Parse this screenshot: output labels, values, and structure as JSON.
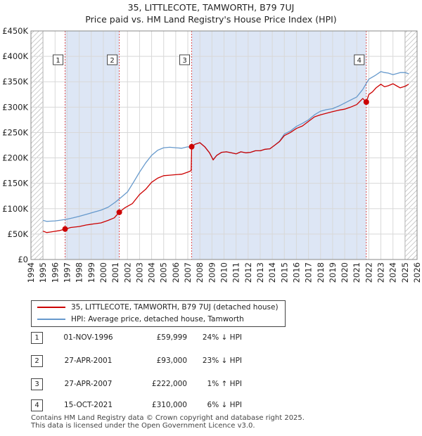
{
  "title": {
    "line1": "35, LITTLECOTE, TAMWORTH, B79 7UJ",
    "line2": "Price paid vs. HM Land Registry's House Price Index (HPI)"
  },
  "colors": {
    "price_paid": "#cc0000",
    "hpi": "#6699cc",
    "shade": "#dde6f5",
    "hatch": "#aaaaaa"
  },
  "legend": {
    "price_paid": "35, LITTLECOTE, TAMWORTH, B79 7UJ (detached house)",
    "hpi": "HPI: Average price, detached house, Tamworth"
  },
  "table": [
    {
      "num": "1",
      "date": "01-NOV-1996",
      "price": "£59,999",
      "pct": "24% ↓ HPI"
    },
    {
      "num": "2",
      "date": "27-APR-2001",
      "price": "£93,000",
      "pct": "23% ↓ HPI"
    },
    {
      "num": "3",
      "date": "27-APR-2007",
      "price": "£222,000",
      "pct": "1% ↑ HPI"
    },
    {
      "num": "4",
      "date": "15-OCT-2021",
      "price": "£310,000",
      "pct": "6% ↓ HPI"
    }
  ],
  "footer": {
    "line1": "Contains HM Land Registry data © Crown copyright and database right 2025.",
    "line2": "This data is licensed under the Open Government Licence v3.0."
  },
  "chart_data": {
    "type": "line",
    "xlim": [
      1994,
      2026
    ],
    "ylim": [
      0,
      450000
    ],
    "ytick_values": [
      0,
      50000,
      100000,
      150000,
      200000,
      250000,
      300000,
      350000,
      400000,
      450000
    ],
    "ytick_labels": [
      "£0",
      "£50K",
      "£100K",
      "£150K",
      "£200K",
      "£250K",
      "£300K",
      "£350K",
      "£400K",
      "£450K"
    ],
    "xtick_labels": [
      "1994",
      "1995",
      "1996",
      "1997",
      "1998",
      "1999",
      "2000",
      "2001",
      "2002",
      "2003",
      "2004",
      "2005",
      "2006",
      "2007",
      "2008",
      "2009",
      "2010",
      "2011",
      "2012",
      "2013",
      "2014",
      "2015",
      "2016",
      "2017",
      "2018",
      "2019",
      "2020",
      "2021",
      "2022",
      "2023",
      "2024",
      "2025",
      "2026"
    ],
    "data_start": 1995.0,
    "hatch_start": 2025.0,
    "shaded_periods": [
      [
        1996.83,
        2001.32
      ],
      [
        2007.32,
        2021.79
      ]
    ],
    "sales": [
      {
        "label": "1",
        "x": 1996.83,
        "y": 59999
      },
      {
        "label": "2",
        "x": 2001.32,
        "y": 93000
      },
      {
        "label": "3",
        "x": 2007.32,
        "y": 222000
      },
      {
        "label": "4",
        "x": 2021.79,
        "y": 310000
      }
    ],
    "series": [
      {
        "name": "35, LITTLECOTE, TAMWORTH, B79 7UJ (detached house)",
        "x": [
          1995.0,
          1995.3,
          1995.6,
          1996.0,
          1996.4,
          1996.83,
          1997.3,
          1998.0,
          1998.6,
          1999.2,
          1999.8,
          2000.4,
          2000.9,
          2001.32,
          2001.8,
          2002.4,
          2003.0,
          2003.5,
          2004.0,
          2004.5,
          2005.0,
          2005.5,
          2006.0,
          2006.5,
          2007.0,
          2007.28,
          2007.32,
          2007.6,
          2008.0,
          2008.4,
          2008.8,
          2009.1,
          2009.4,
          2009.8,
          2010.2,
          2010.6,
          2011.0,
          2011.4,
          2011.8,
          2012.2,
          2012.6,
          2013.0,
          2013.4,
          2013.8,
          2014.2,
          2014.6,
          2015.0,
          2015.5,
          2016.0,
          2016.5,
          2017.0,
          2017.5,
          2018.0,
          2018.5,
          2019.0,
          2019.5,
          2020.0,
          2020.5,
          2021.0,
          2021.5,
          2021.79,
          2022.0,
          2022.3,
          2022.6,
          2023.0,
          2023.3,
          2023.6,
          2024.0,
          2024.3,
          2024.6,
          2025.0,
          2025.3
        ],
        "values": [
          56000,
          53000,
          54000,
          55500,
          57000,
          59999,
          63000,
          65000,
          68000,
          70000,
          72000,
          77000,
          82000,
          93000,
          102000,
          110000,
          128000,
          138000,
          152000,
          160000,
          165000,
          166000,
          167000,
          168000,
          172000,
          175000,
          222000,
          227000,
          230000,
          222000,
          210000,
          196000,
          205000,
          211000,
          212000,
          210000,
          208000,
          212000,
          210000,
          211000,
          214000,
          214000,
          217000,
          218000,
          225000,
          232000,
          244000,
          250000,
          258000,
          263000,
          272000,
          281000,
          285000,
          288000,
          291000,
          294000,
          296000,
          300000,
          305000,
          317000,
          310000,
          325000,
          330000,
          338000,
          345000,
          340000,
          342000,
          346000,
          342000,
          338000,
          341000,
          345000
        ]
      },
      {
        "name": "HPI: Average price, detached house, Tamworth",
        "x": [
          1995.0,
          1995.3,
          1995.6,
          1996.0,
          1996.5,
          1997.0,
          1997.5,
          1998.0,
          1998.6,
          1999.2,
          1999.8,
          2000.4,
          2001.0,
          2001.5,
          2002.0,
          2002.5,
          2003.0,
          2003.5,
          2004.0,
          2004.5,
          2005.0,
          2005.5,
          2006.0,
          2006.5,
          2007.0,
          2007.3,
          2007.6,
          2008.0,
          2008.4,
          2008.8,
          2009.1,
          2009.4,
          2009.8,
          2010.2,
          2010.6,
          2011.0,
          2011.4,
          2011.8,
          2012.2,
          2012.6,
          2013.0,
          2013.4,
          2013.8,
          2014.2,
          2014.6,
          2015.0,
          2015.5,
          2016.0,
          2016.5,
          2017.0,
          2017.5,
          2018.0,
          2018.5,
          2019.0,
          2019.5,
          2020.0,
          2020.5,
          2021.0,
          2021.5,
          2022.0,
          2022.5,
          2023.0,
          2023.3,
          2023.6,
          2024.0,
          2024.3,
          2024.6,
          2025.0,
          2025.3
        ],
        "values": [
          77000,
          75000,
          75500,
          76000,
          77500,
          79500,
          82000,
          85000,
          89000,
          93000,
          97000,
          103000,
          113000,
          123000,
          133000,
          152000,
          172000,
          190000,
          205000,
          215000,
          220000,
          221000,
          220000,
          219000,
          222000,
          220000,
          227000,
          230000,
          222000,
          210000,
          197000,
          205000,
          211000,
          212000,
          210000,
          208000,
          212000,
          210000,
          211000,
          214000,
          214000,
          217000,
          218000,
          225000,
          233000,
          247000,
          253000,
          262000,
          268000,
          275000,
          285000,
          292000,
          295000,
          297000,
          302000,
          308000,
          314000,
          320000,
          335000,
          355000,
          362000,
          370000,
          368000,
          367000,
          364000,
          366000,
          368000,
          368000,
          366000
        ]
      }
    ]
  }
}
